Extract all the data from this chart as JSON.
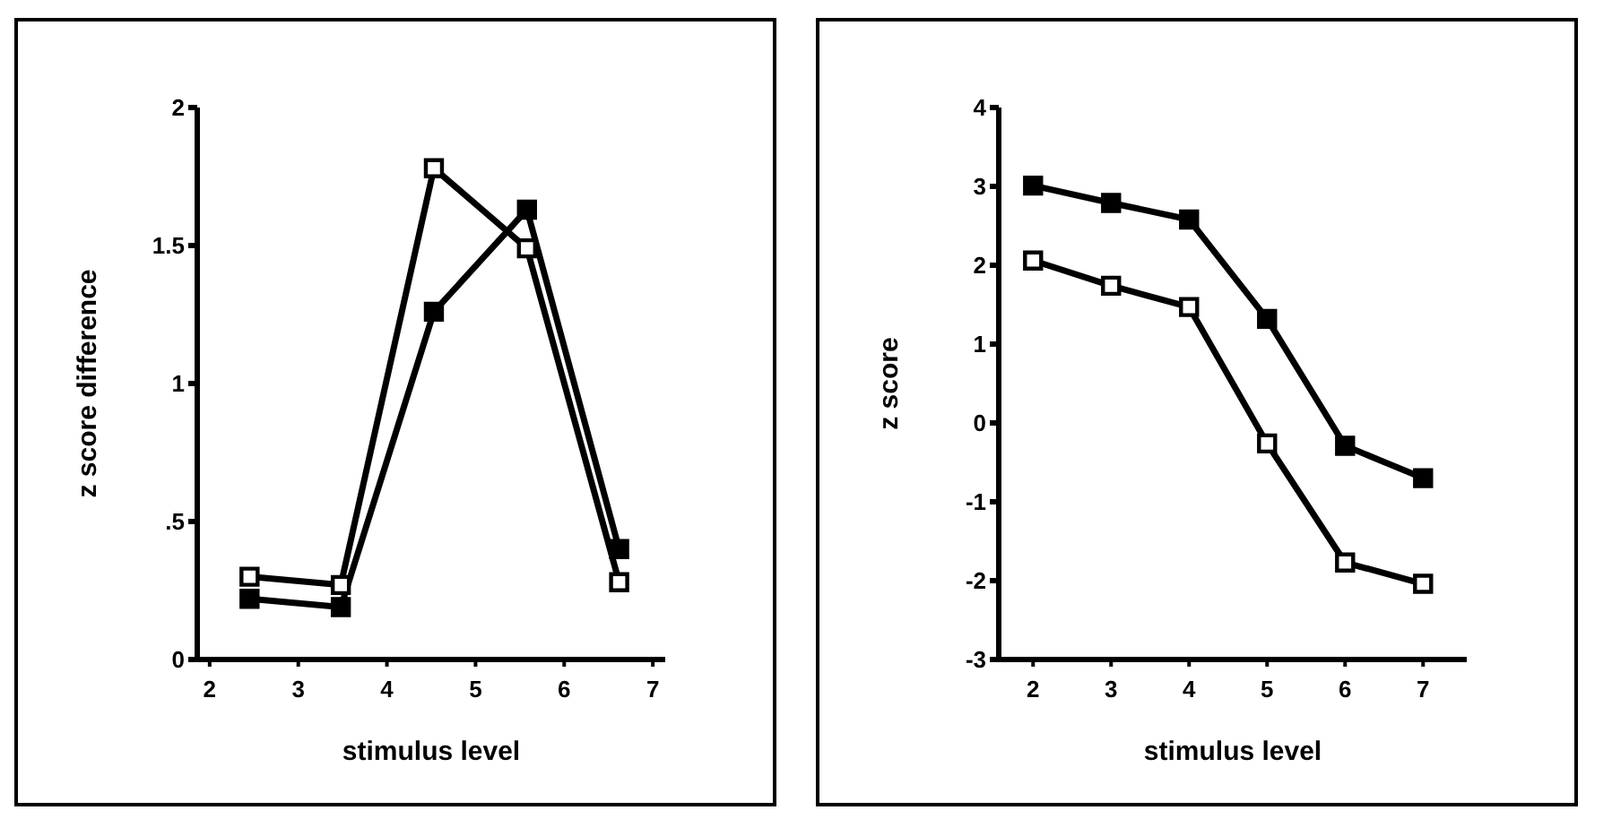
{
  "chart_data": [
    {
      "type": "line",
      "xlabel": "stimulus level",
      "ylabel": "z score difference",
      "xlim": [
        1.86,
        7.14
      ],
      "xticks": [
        2,
        3,
        4,
        5,
        6,
        7
      ],
      "ylim": [
        0,
        2
      ],
      "yticks": [
        0,
        {
          "value": 0.5,
          "label": ".5"
        },
        1,
        1.5,
        2
      ],
      "marker": "square",
      "series": [
        {
          "color": "#000000",
          "x": [
            2.45,
            3.48,
            4.53,
            5.58,
            6.62
          ],
          "values": [
            0.22,
            0.19,
            1.26,
            1.63,
            0.4
          ]
        },
        {
          "color": "#000000",
          "x": [
            2.45,
            3.48,
            4.53,
            5.58,
            6.62
          ],
          "values": [
            0.3,
            0.27,
            1.78,
            1.49,
            0.28
          ]
        }
      ]
    },
    {
      "type": "line",
      "xlabel": "stimulus level",
      "ylabel": "z score",
      "xlim": [
        1.56,
        7.56
      ],
      "xticks": [
        2,
        3,
        4,
        5,
        6,
        7
      ],
      "ylim": [
        -3,
        4
      ],
      "yticks": [
        -3,
        -2,
        -1,
        0,
        1,
        2,
        3,
        4
      ],
      "marker": "square",
      "series": [
        {
          "color": "#000000",
          "x": [
            2,
            3,
            4,
            5,
            6,
            7
          ],
          "values": [
            3.01,
            2.79,
            2.58,
            1.32,
            -0.29,
            -0.7
          ]
        },
        {
          "color": "#000000",
          "x": [
            2,
            3,
            4,
            5,
            6,
            7
          ],
          "values": [
            2.06,
            1.74,
            1.47,
            -0.26,
            -1.77,
            -2.04
          ]
        }
      ]
    }
  ]
}
